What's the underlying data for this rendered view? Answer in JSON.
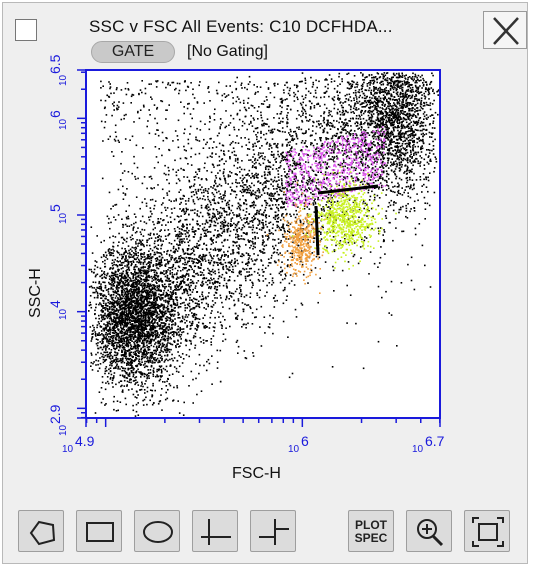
{
  "window": {
    "title": "SSC v FSC All Events: C10 DCFHDA...",
    "gate_label": "GATE",
    "gating_status": "[No Gating]"
  },
  "chart_data": {
    "type": "scatter",
    "xlabel": "FSC-H",
    "ylabel": "SSC-H",
    "x_scale": "log",
    "y_scale": "log",
    "xlim": [
      4.9,
      6.7
    ],
    "ylim": [
      2.9,
      6.5
    ],
    "x_tick_labels": [
      {
        "base": "10",
        "exp": "4.9",
        "value": 4.9
      },
      {
        "base": "10",
        "exp": "6",
        "value": 6
      },
      {
        "base": "10",
        "exp": "6.7",
        "value": 6.7
      }
    ],
    "y_tick_labels": [
      {
        "base": "10",
        "exp": "2.9",
        "value": 2.9
      },
      {
        "base": "10",
        "exp": "4",
        "value": 4
      },
      {
        "base": "10",
        "exp": "5",
        "value": 5
      },
      {
        "base": "10",
        "exp": "6",
        "value": 6
      },
      {
        "base": "10",
        "exp": "6.5",
        "value": 6.5
      }
    ],
    "populations": [
      {
        "color": "#000000",
        "center": [
          5.25,
          4.3
        ],
        "description_note": null
      },
      {
        "color": "#e05cf0",
        "center": [
          6.25,
          5.35
        ]
      },
      {
        "color": "#f0a040",
        "center": [
          5.98,
          4.75
        ]
      },
      {
        "color": "#c8f020",
        "center": [
          6.2,
          4.9
        ]
      }
    ],
    "axis_color": "#1a1adc"
  },
  "toolbar": {
    "plot_spec_line1": "PLOT",
    "plot_spec_line2": "SPEC",
    "tools": [
      "polygon-gate",
      "rectangle-gate",
      "ellipse-gate",
      "quadrant-gate",
      "split-quadrant-gate",
      "plot-spec",
      "zoom-in",
      "fit-to-window"
    ]
  }
}
